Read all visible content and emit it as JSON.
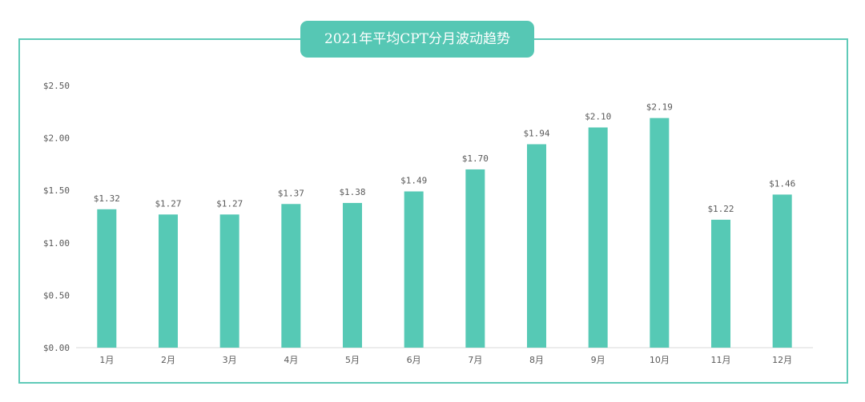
{
  "chart_data": {
    "type": "bar",
    "title": "2021年平均CPT分月波动趋势",
    "categories": [
      "1月",
      "2月",
      "3月",
      "4月",
      "5月",
      "6月",
      "7月",
      "8月",
      "9月",
      "10月",
      "11月",
      "12月"
    ],
    "values": [
      1.32,
      1.27,
      1.27,
      1.37,
      1.38,
      1.49,
      1.7,
      1.94,
      2.1,
      2.19,
      1.22,
      1.46
    ],
    "data_labels": [
      "$1.32",
      "$1.27",
      "$1.27",
      "$1.37",
      "$1.38",
      "$1.49",
      "$1.70",
      "$1.94",
      "$2.10",
      "$2.19",
      "$1.22",
      "$1.46"
    ],
    "yticks": [
      0,
      0.5,
      1.0,
      1.5,
      2.0,
      2.5
    ],
    "ytick_labels": [
      "$0.00",
      "$0.50",
      "$1.00",
      "$1.50",
      "$2.00",
      "$2.50"
    ],
    "ylim": [
      0,
      2.5
    ],
    "grid": false,
    "legend": "none",
    "bar_color": "#56c9b5",
    "frame_color": "#5fcab8",
    "title_bg_color": "#56c7b4"
  }
}
